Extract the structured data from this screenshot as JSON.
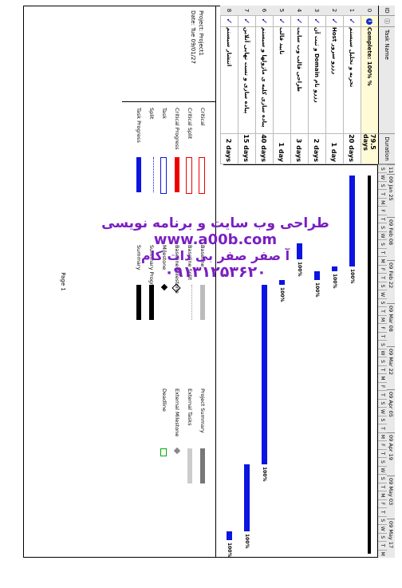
{
  "table": {
    "headers": {
      "id": "ID",
      "info": "",
      "name": "Task Name",
      "duration": "Duration"
    },
    "rows": [
      {
        "id": "0",
        "name": "% Complete: 100%",
        "duration": "79.5 days",
        "summary": true
      },
      {
        "id": "1",
        "name": "تجزیه و تحلیل سیستم",
        "duration": "20 days",
        "summary": false
      },
      {
        "id": "2",
        "name": "رزرو سرور Host",
        "duration": "1 day",
        "summary": false
      },
      {
        "id": "3",
        "name": "رزرو نام Domain و ثبت آن",
        "duration": "2 days",
        "summary": false
      },
      {
        "id": "4",
        "name": "طراحی قالب وب سایت",
        "duration": "3 days",
        "summary": false
      },
      {
        "id": "5",
        "name": "تایید قالب",
        "duration": "1 day",
        "summary": false
      },
      {
        "id": "6",
        "name": "پیاده سازی کلیه ی ماژولها و سیستم",
        "duration": "40 days",
        "summary": false
      },
      {
        "id": "7",
        "name": "پیاده سازی و تست نهایی آنلاین",
        "duration": "15 days",
        "summary": false
      },
      {
        "id": "8",
        "name": "انتشار سیستم",
        "duration": "2 days",
        "summary": false
      }
    ]
  },
  "timescale": {
    "weeks": [
      "11",
      "09 Jan 25",
      "09 Feb 08",
      "09 Feb 22",
      "09 Mar 08",
      "09 Mar 22",
      "09 Apr 05",
      "09 Apr 19",
      "09 May 03",
      "09 May 17"
    ],
    "days": [
      "S",
      "W",
      "S",
      "T",
      "M",
      "F",
      "T",
      "S",
      "W",
      "S",
      "T",
      "M",
      "F",
      "T",
      "S",
      "W",
      "S",
      "T",
      "M",
      "F",
      "T",
      "S",
      "W",
      "S",
      "T",
      "M",
      "F",
      "T",
      "S",
      "W",
      "S",
      "T",
      "M",
      "F",
      "T",
      "S",
      "W",
      "S",
      "T",
      "M",
      "F",
      "T",
      "S",
      "W",
      "S",
      "T",
      "M"
    ]
  },
  "bars": {
    "percent_label": "100%"
  },
  "project_info": {
    "project": "Project: Project1",
    "date": "Date: Tue 09/01/27"
  },
  "legend": {
    "col1": [
      "Critical",
      "Critical Split",
      "Critical Progress",
      "Task",
      "Split",
      "Task Progress"
    ],
    "col2": [
      "Baseline",
      "Baseline Split",
      "Baseline Milestone",
      "Milestone",
      "Summary Progress",
      "Summary"
    ],
    "col3": [
      "Project Summary",
      "External Tasks",
      "External Milestone",
      "Deadline"
    ]
  },
  "footer": {
    "page": "Page 1"
  },
  "watermark": {
    "line1": "طراحی وب سایت و برنامه نویسی",
    "line2": "www.a00b.com",
    "line3": "آ صفر صفر بی دات کام",
    "line4": "۰۹۱۳۱۲۵۳۶۲۰"
  },
  "colors": {
    "task_bar": "#0b14e0",
    "critical": "#ff0000",
    "watermark": "#7a1fc0",
    "summary_row": "#fffbd6"
  }
}
